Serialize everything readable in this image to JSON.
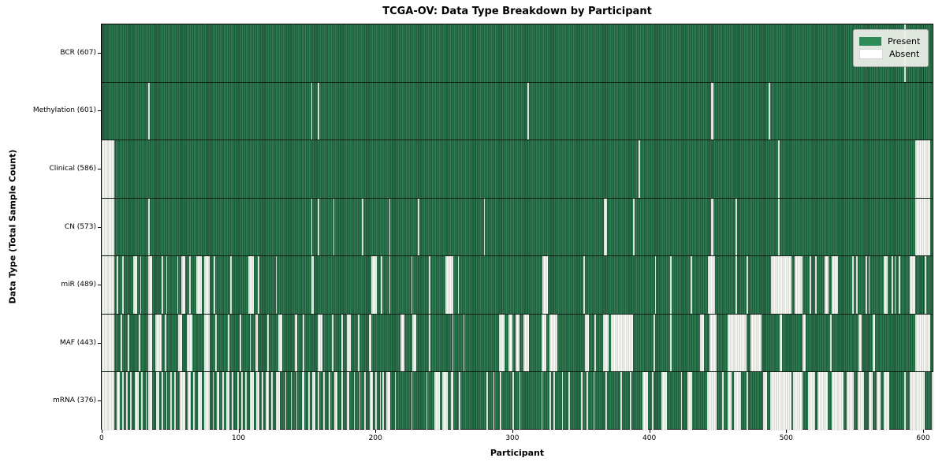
{
  "title": "TCGA-OV: Data Type Breakdown by Participant",
  "xlabel": "Participant",
  "ylabel": "Data Type (Total Sample Count)",
  "legend": {
    "present_label": "Present",
    "absent_label": "Absent"
  },
  "colors": {
    "present_fill": "#2f7e53",
    "present_edge": "#16432c",
    "absent_fill": "#fbfbf8",
    "absent_edge": "#bcc0bb",
    "legend_present_swatch": "#2e8b57",
    "row_separator": "#000000"
  },
  "chart_data": {
    "type": "heatmap",
    "title": "TCGA-OV: Data Type Breakdown by Participant",
    "xlabel": "Participant",
    "ylabel": "Data Type (Total Sample Count)",
    "legend_entries": [
      "Present",
      "Absent"
    ],
    "legend_position": "upper right",
    "grid": "horizontal-row-separators",
    "n_participants": 608,
    "xlim": [
      0,
      608
    ],
    "x_ticks": [
      0,
      100,
      200,
      300,
      400,
      500,
      600
    ],
    "x_tick_labels": [
      "0",
      "100",
      "200",
      "300",
      "400",
      "500",
      "600"
    ],
    "rows": [
      {
        "label": "BCR (607)",
        "data_type": "BCR",
        "present_count": 607,
        "absent_count": 1,
        "absent_ranges": [
          [
            586,
            586
          ]
        ]
      },
      {
        "label": "Methylation (601)",
        "data_type": "Methylation",
        "present_count": 601,
        "absent_count": 7,
        "absent_ranges": [
          [
            34,
            34
          ],
          [
            153,
            153
          ],
          [
            158,
            158
          ],
          [
            311,
            311
          ],
          [
            445,
            446
          ],
          [
            487,
            487
          ]
        ]
      },
      {
        "label": "Clinical (586)",
        "data_type": "Clinical",
        "present_count": 586,
        "absent_count": 22,
        "absent_ranges": [
          [
            0,
            8
          ],
          [
            392,
            392
          ],
          [
            494,
            494
          ],
          [
            594,
            604
          ]
        ]
      },
      {
        "label": "CN (573)",
        "data_type": "CN",
        "present_count": 573,
        "absent_count": 35,
        "absent_ranges": [
          [
            0,
            8
          ],
          [
            34,
            34
          ],
          [
            153,
            153
          ],
          [
            158,
            158
          ],
          [
            169,
            169
          ],
          [
            190,
            190
          ],
          [
            210,
            210
          ],
          [
            231,
            231
          ],
          [
            279,
            279
          ],
          [
            367,
            368
          ],
          [
            388,
            388
          ],
          [
            445,
            446
          ],
          [
            463,
            463
          ],
          [
            494,
            494
          ],
          [
            594,
            604
          ]
        ]
      },
      {
        "label": "miR (489)",
        "data_type": "miR",
        "present_count": 489,
        "absent_count": 119,
        "absent_ranges": [
          [
            0,
            8
          ],
          [
            11,
            11
          ],
          [
            15,
            15
          ],
          [
            23,
            25
          ],
          [
            28,
            28
          ],
          [
            34,
            36
          ],
          [
            44,
            44
          ],
          [
            47,
            47
          ],
          [
            55,
            55
          ],
          [
            58,
            60
          ],
          [
            64,
            64
          ],
          [
            69,
            72
          ],
          [
            75,
            78
          ],
          [
            82,
            82
          ],
          [
            94,
            94
          ],
          [
            107,
            110
          ],
          [
            114,
            114
          ],
          [
            127,
            127
          ],
          [
            153,
            154
          ],
          [
            197,
            200
          ],
          [
            204,
            204
          ],
          [
            210,
            210
          ],
          [
            226,
            226
          ],
          [
            239,
            239
          ],
          [
            251,
            256
          ],
          [
            260,
            260
          ],
          [
            322,
            325
          ],
          [
            352,
            352
          ],
          [
            404,
            404
          ],
          [
            415,
            415
          ],
          [
            430,
            430
          ],
          [
            443,
            447
          ],
          [
            463,
            463
          ],
          [
            471,
            471
          ],
          [
            489,
            503
          ],
          [
            506,
            511
          ],
          [
            517,
            517
          ],
          [
            521,
            521
          ],
          [
            528,
            530
          ],
          [
            533,
            537
          ],
          [
            548,
            548
          ],
          [
            551,
            551
          ],
          [
            558,
            558
          ],
          [
            560,
            560
          ],
          [
            571,
            573
          ],
          [
            577,
            577
          ],
          [
            579,
            579
          ],
          [
            582,
            582
          ],
          [
            590,
            593
          ],
          [
            601,
            601
          ]
        ]
      },
      {
        "label": "MAF (443)",
        "data_type": "MAF",
        "present_count": 443,
        "absent_count": 165,
        "absent_ranges": [
          [
            0,
            8
          ],
          [
            14,
            14
          ],
          [
            19,
            19
          ],
          [
            27,
            27
          ],
          [
            34,
            36
          ],
          [
            39,
            43
          ],
          [
            46,
            46
          ],
          [
            56,
            58
          ],
          [
            62,
            65
          ],
          [
            75,
            78
          ],
          [
            83,
            83
          ],
          [
            92,
            92
          ],
          [
            101,
            101
          ],
          [
            108,
            108
          ],
          [
            112,
            113
          ],
          [
            121,
            121
          ],
          [
            129,
            131
          ],
          [
            141,
            142
          ],
          [
            147,
            147
          ],
          [
            158,
            160
          ],
          [
            168,
            168
          ],
          [
            175,
            175
          ],
          [
            179,
            181
          ],
          [
            187,
            187
          ],
          [
            195,
            196
          ],
          [
            218,
            220
          ],
          [
            227,
            229
          ],
          [
            239,
            239
          ],
          [
            256,
            256
          ],
          [
            264,
            264
          ],
          [
            290,
            293
          ],
          [
            297,
            299
          ],
          [
            302,
            304
          ],
          [
            308,
            311
          ],
          [
            321,
            324
          ],
          [
            327,
            332
          ],
          [
            353,
            355
          ],
          [
            360,
            360
          ],
          [
            366,
            369
          ],
          [
            372,
            387
          ],
          [
            403,
            403
          ],
          [
            415,
            415
          ],
          [
            437,
            439
          ],
          [
            444,
            448
          ],
          [
            457,
            470
          ],
          [
            474,
            481
          ],
          [
            495,
            496
          ],
          [
            512,
            513
          ],
          [
            532,
            532
          ],
          [
            553,
            554
          ],
          [
            563,
            564
          ],
          [
            594,
            604
          ]
        ]
      },
      {
        "label": "mRNA (376)",
        "data_type": "mRNA",
        "present_count": 376,
        "absent_count": 232,
        "absent_ranges": [
          [
            0,
            8
          ],
          [
            11,
            12
          ],
          [
            15,
            15
          ],
          [
            18,
            18
          ],
          [
            21,
            21
          ],
          [
            24,
            26
          ],
          [
            29,
            29
          ],
          [
            32,
            32
          ],
          [
            34,
            36
          ],
          [
            40,
            41
          ],
          [
            44,
            44
          ],
          [
            47,
            47
          ],
          [
            50,
            50
          ],
          [
            53,
            53
          ],
          [
            57,
            60
          ],
          [
            63,
            64
          ],
          [
            67,
            67
          ],
          [
            70,
            72
          ],
          [
            75,
            78
          ],
          [
            81,
            81
          ],
          [
            84,
            85
          ],
          [
            88,
            88
          ],
          [
            91,
            92
          ],
          [
            95,
            95
          ],
          [
            99,
            99
          ],
          [
            102,
            102
          ],
          [
            105,
            105
          ],
          [
            108,
            110
          ],
          [
            113,
            114
          ],
          [
            117,
            117
          ],
          [
            120,
            121
          ],
          [
            124,
            124
          ],
          [
            127,
            129
          ],
          [
            134,
            134
          ],
          [
            138,
            138
          ],
          [
            142,
            142
          ],
          [
            146,
            147
          ],
          [
            151,
            151
          ],
          [
            154,
            155
          ],
          [
            158,
            158
          ],
          [
            162,
            162
          ],
          [
            166,
            166
          ],
          [
            170,
            171
          ],
          [
            175,
            175
          ],
          [
            179,
            180
          ],
          [
            184,
            184
          ],
          [
            188,
            188
          ],
          [
            192,
            192
          ],
          [
            196,
            197
          ],
          [
            200,
            200
          ],
          [
            203,
            203
          ],
          [
            205,
            205
          ],
          [
            208,
            210
          ],
          [
            214,
            214
          ],
          [
            226,
            226
          ],
          [
            237,
            237
          ],
          [
            243,
            246
          ],
          [
            249,
            252
          ],
          [
            255,
            256
          ],
          [
            261,
            261
          ],
          [
            281,
            281
          ],
          [
            286,
            286
          ],
          [
            291,
            291
          ],
          [
            300,
            300
          ],
          [
            305,
            305
          ],
          [
            321,
            321
          ],
          [
            327,
            327
          ],
          [
            330,
            330
          ],
          [
            336,
            336
          ],
          [
            341,
            341
          ],
          [
            350,
            350
          ],
          [
            354,
            354
          ],
          [
            359,
            359
          ],
          [
            368,
            368
          ],
          [
            379,
            379
          ],
          [
            386,
            386
          ],
          [
            395,
            398
          ],
          [
            402,
            402
          ],
          [
            409,
            412
          ],
          [
            423,
            423
          ],
          [
            428,
            430
          ],
          [
            442,
            448
          ],
          [
            453,
            453
          ],
          [
            457,
            459
          ],
          [
            462,
            466
          ],
          [
            471,
            471
          ],
          [
            483,
            485
          ],
          [
            488,
            503
          ],
          [
            505,
            511
          ],
          [
            516,
            520
          ],
          [
            523,
            529
          ],
          [
            533,
            541
          ],
          [
            544,
            548
          ],
          [
            552,
            556
          ],
          [
            560,
            562
          ],
          [
            566,
            568
          ],
          [
            571,
            574
          ],
          [
            586,
            586
          ],
          [
            590,
            600
          ],
          [
            606,
            607
          ]
        ]
      }
    ]
  }
}
